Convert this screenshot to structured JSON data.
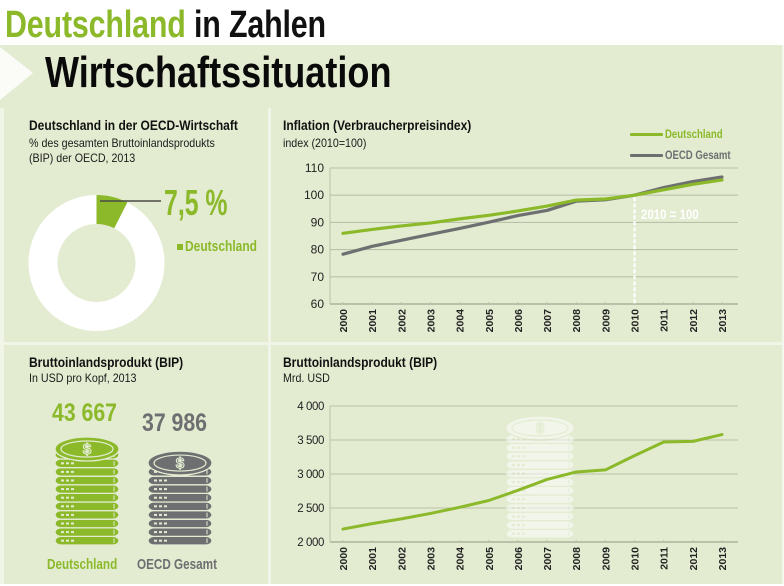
{
  "header": {
    "title_highlight": "Deutschland",
    "title_rest": "in Zahlen",
    "section_title": "Wirtschaftssituation"
  },
  "colors": {
    "accent_green": "#8bb92a",
    "oecd_gray": "#6e6f71",
    "panel_bg": "#e3ecd1",
    "annotation": "#ffffff"
  },
  "icons": {
    "coin_symbol": "$"
  },
  "chart_data": [
    {
      "type": "pie",
      "title": "Deutschland in der OECD-Wirtschaft",
      "subtitle": [
        "% des gesamten Bruttoinlandsprodukts",
        "(BIP) der OECD, 2013"
      ],
      "total": 100,
      "slices": [
        {
          "label": "Deutschland",
          "value": 7.5,
          "color": "#8bb92a"
        }
      ],
      "remainder_color": "#ffffff",
      "value_label": "7,5 %",
      "legend": [
        "Deutschland"
      ]
    },
    {
      "type": "line",
      "title": "Inflation (Verbraucherpreisindex)",
      "subtitle": "index (2010=100)",
      "x": [
        "2000",
        "2001",
        "2002",
        "2003",
        "2004",
        "2005",
        "2006",
        "2007",
        "2008",
        "2009",
        "2010",
        "2011",
        "2012",
        "2013"
      ],
      "series": [
        {
          "name": "Deutschland",
          "color": "#8bb92a",
          "values": [
            86.0,
            87.4,
            88.7,
            89.8,
            91.3,
            92.6,
            94.2,
            96.0,
            98.2,
            98.6,
            100.0,
            102.0,
            104.0,
            105.6
          ]
        },
        {
          "name": "OECD Gesamt",
          "color": "#6e6f71",
          "values": [
            78.3,
            81.2,
            83.4,
            85.6,
            87.8,
            90.1,
            92.5,
            94.4,
            97.8,
            98.3,
            100.0,
            102.8,
            105.0,
            106.7
          ]
        }
      ],
      "ylim": [
        60,
        110
      ],
      "yticks": [
        60,
        70,
        80,
        90,
        100,
        110
      ],
      "grid": true,
      "legend": "top-right",
      "annotation": {
        "x": "2010",
        "value": 100,
        "label": "2010 = 100"
      }
    },
    {
      "type": "bar",
      "title": "Bruttoinlandsprodukt (BIP)",
      "subtitle": "In USD pro Kopf, 2013",
      "categories": [
        "Deutschland",
        "OECD Gesamt"
      ],
      "values": [
        43667,
        37986
      ],
      "value_labels": [
        "43 667",
        "37 986"
      ],
      "colors": [
        "#8bb92a",
        "#6e6f71"
      ]
    },
    {
      "type": "line",
      "title": "Bruttoinlandsprodukt (BIP)",
      "subtitle": "Mrd. USD",
      "x": [
        "2000",
        "2001",
        "2002",
        "2003",
        "2004",
        "2005",
        "2006",
        "2007",
        "2008",
        "2009",
        "2010",
        "2011",
        "2012",
        "2013"
      ],
      "series": [
        {
          "name": "BIP",
          "color": "#8bb92a",
          "values": [
            2190,
            2270,
            2340,
            2420,
            2510,
            2610,
            2760,
            2920,
            3030,
            3060,
            3270,
            3470,
            3480,
            3580
          ]
        }
      ],
      "ylim": [
        2000,
        4000
      ],
      "yticks": [
        2000,
        2500,
        3000,
        3500,
        4000
      ],
      "ytick_labels": [
        "2 000",
        "2 500",
        "3 000",
        "3 500",
        "4 000"
      ],
      "grid": true
    }
  ]
}
